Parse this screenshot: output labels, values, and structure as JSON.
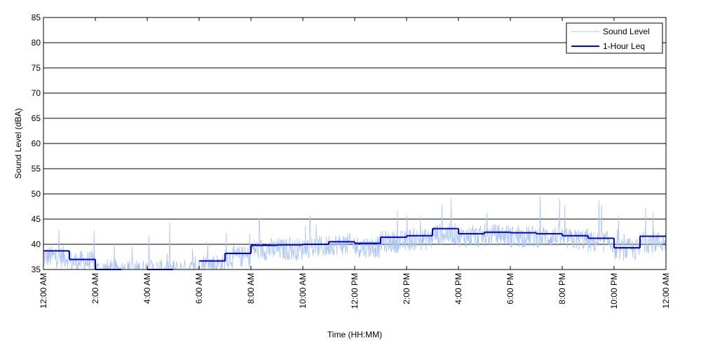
{
  "chart_data": {
    "type": "line",
    "xlabel": "Time (HH:MM)",
    "ylabel": "Sound Level (dBA)",
    "ylim": [
      35,
      85
    ],
    "xlim": [
      0,
      24
    ],
    "y_ticks": [
      35,
      40,
      45,
      50,
      55,
      60,
      65,
      70,
      75,
      80,
      85
    ],
    "x_ticks": [
      {
        "value": 0,
        "label": "12:00 AM"
      },
      {
        "value": 2,
        "label": "2:00 AM"
      },
      {
        "value": 4,
        "label": "4:00 AM"
      },
      {
        "value": 6,
        "label": "6:00 AM"
      },
      {
        "value": 8,
        "label": "8:00 AM"
      },
      {
        "value": 10,
        "label": "10:00 AM"
      },
      {
        "value": 12,
        "label": "12:00 PM"
      },
      {
        "value": 14,
        "label": "2:00 PM"
      },
      {
        "value": 16,
        "label": "4:00 PM"
      },
      {
        "value": 18,
        "label": "6:00 PM"
      },
      {
        "value": 20,
        "label": "8:00 PM"
      },
      {
        "value": 22,
        "label": "10:00 PM"
      },
      {
        "value": 24,
        "label": "12:00 AM"
      }
    ],
    "grid": "horizontal",
    "legend_position": "top-right",
    "series": [
      {
        "name": "Sound Level",
        "color": "#a9c4f5",
        "style": "thin-noisy",
        "hourly_level_estimate": [
          37.5,
          36.5,
          34.8,
          34.8,
          34.8,
          34.8,
          36,
          37.5,
          39,
          39,
          39.5,
          40,
          39.5,
          40.5,
          41,
          42,
          41.5,
          41.8,
          41.5,
          41.5,
          41,
          40.5,
          39,
          40.5
        ]
      },
      {
        "name": "1-Hour Leq",
        "color": "#0000cc",
        "style": "step",
        "x": [
          0,
          1,
          2,
          3,
          4,
          5,
          6,
          7,
          8,
          9,
          10,
          11,
          12,
          13,
          14,
          15,
          16,
          17,
          18,
          19,
          20,
          21,
          22,
          23
        ],
        "values": [
          38.7,
          37.0,
          35.0,
          null,
          35.0,
          null,
          36.7,
          38.2,
          39.8,
          39.9,
          40.0,
          40.5,
          40.2,
          41.4,
          41.7,
          43.1,
          42.1,
          42.4,
          42.3,
          42.1,
          41.7,
          41.2,
          39.3,
          41.6
        ]
      }
    ]
  }
}
